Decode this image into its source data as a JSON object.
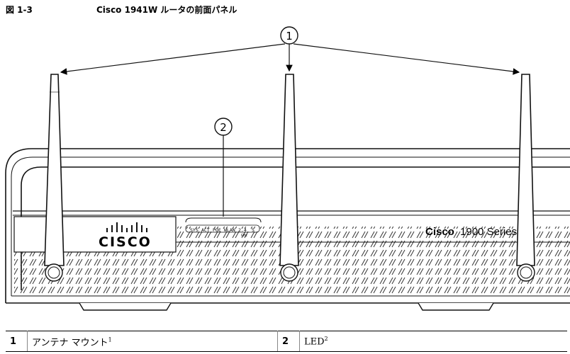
{
  "caption": {
    "figure_no": "図 1-3",
    "title": "Cisco 1941W ルータの前面パネル"
  },
  "callouts": [
    "1",
    "2"
  ],
  "router": {
    "led_labels": [
      "SYS",
      "ACT",
      "POE",
      "WLAN",
      "2.4",
      "5"
    ],
    "led_ghz": "GHz",
    "logo_text": "CISCO",
    "model_brand": "Cisco",
    "model_series": "1900 Series"
  },
  "legend": [
    {
      "num": "1",
      "text": "アンテナ マウント",
      "sup": "1"
    },
    {
      "num": "2",
      "text": "LED",
      "sup": "2"
    }
  ],
  "colors": {
    "line": "#111111",
    "vent": "#444444",
    "antenna": "#ffffff"
  }
}
